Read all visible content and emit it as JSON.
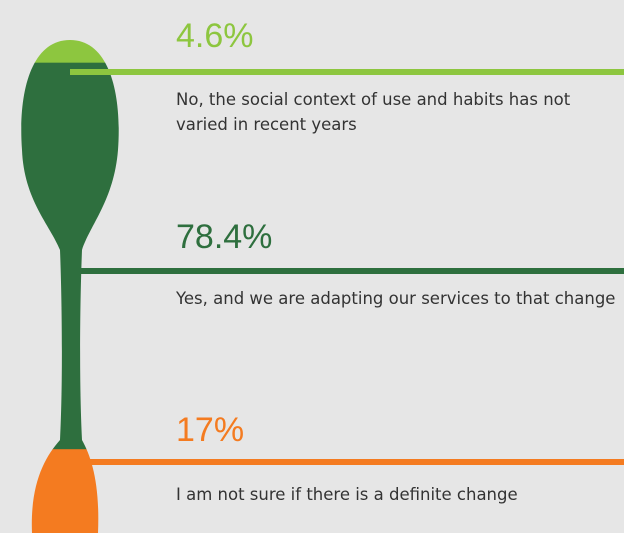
{
  "chart_data": {
    "type": "spoon",
    "categories": [
      "No, the social context of use and habits has not varied in recent years",
      "Yes, and we are adapting our services to that change",
      "I am not sure if there is a definite change"
    ],
    "values": [
      4.6,
      78.4,
      17
    ],
    "value_labels": [
      "4.6%",
      "78.4%",
      "17%"
    ],
    "colors": [
      "#8dc63f",
      "#2e6f3e",
      "#f47b20"
    ]
  }
}
